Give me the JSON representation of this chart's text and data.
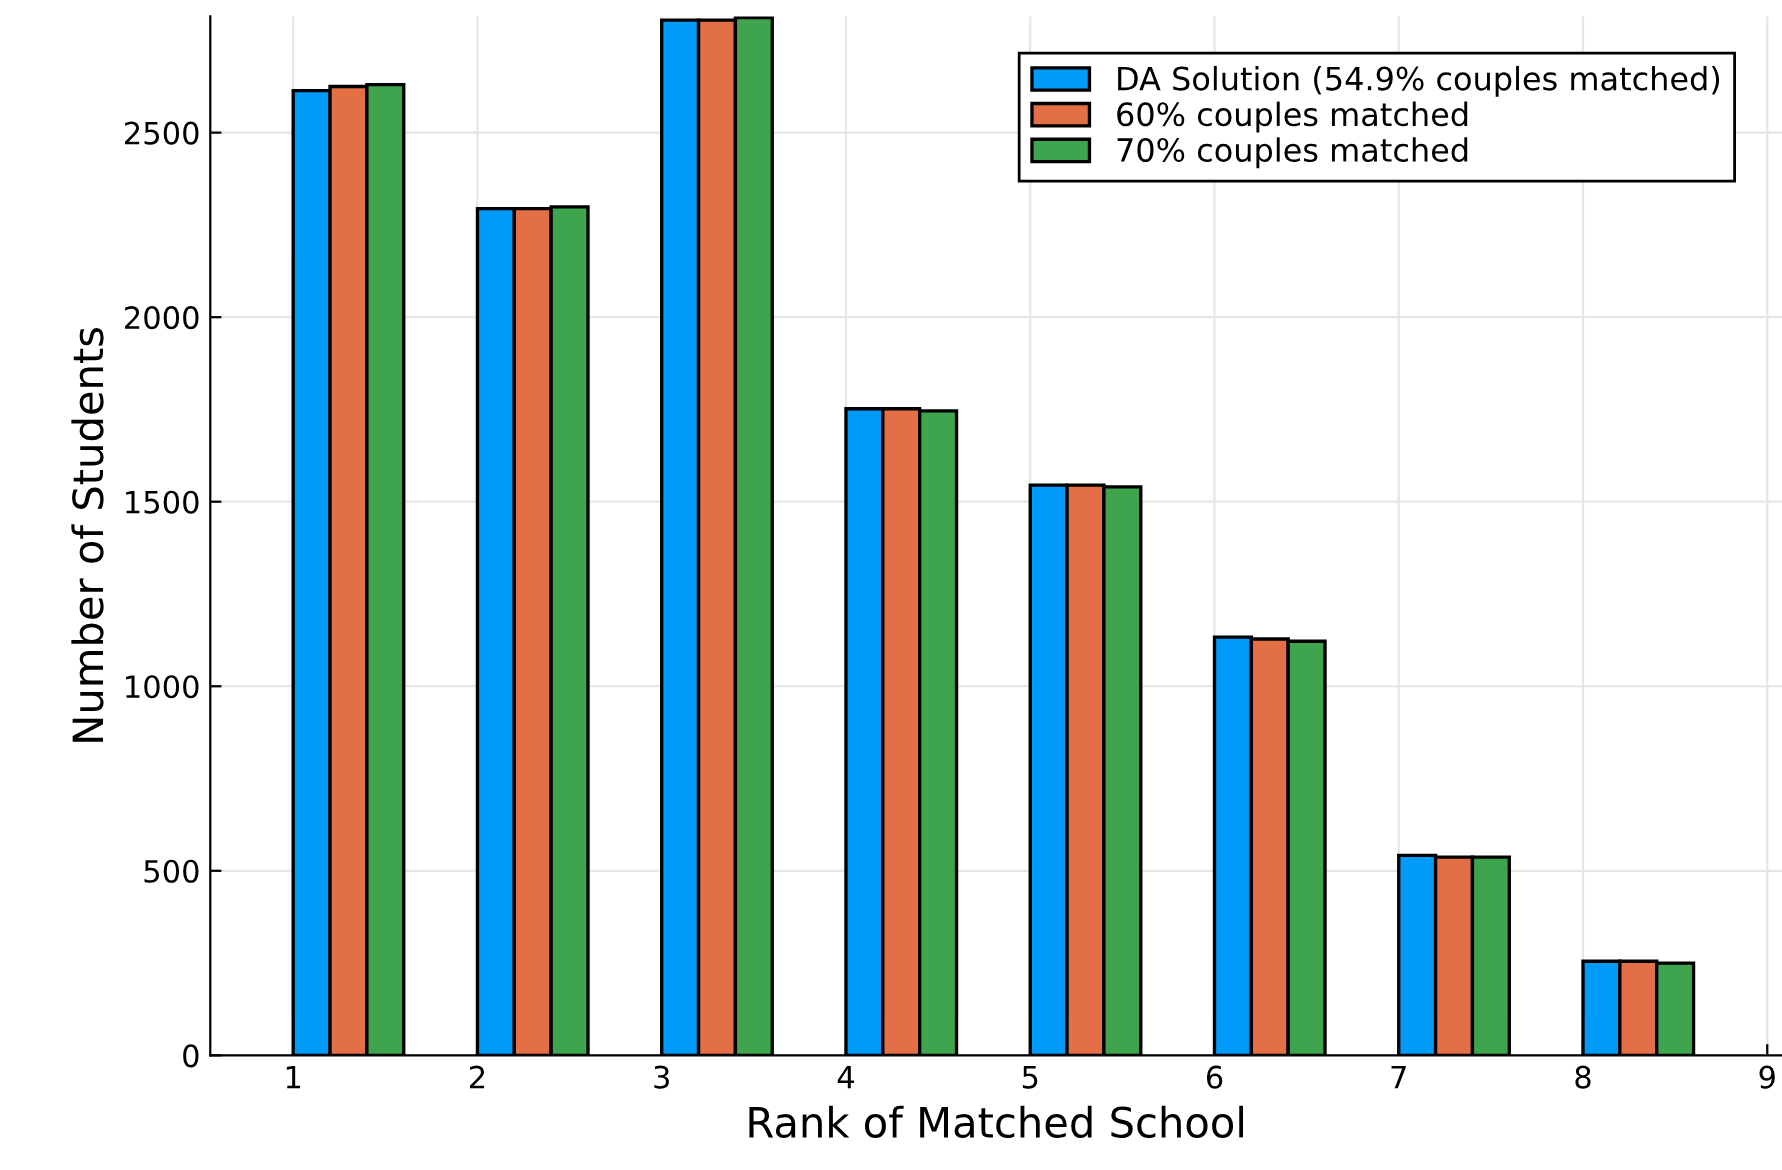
{
  "chart_data": {
    "type": "bar",
    "xlabel": "Rank of Matched School",
    "ylabel": "Number of Students",
    "series": [
      {
        "name": "DA Solution (54.9% couples matched)",
        "color": "#009af9",
        "x": [
          1.1,
          2.1,
          3.1,
          4.1,
          5.1,
          6.1,
          7.1,
          8.1
        ],
        "values": [
          2614,
          2294,
          2805,
          1752,
          1545,
          1133,
          542,
          255
        ]
      },
      {
        "name": "60% couples matched",
        "color": "#e26f46",
        "x": [
          1.3,
          2.3,
          3.3,
          4.3,
          5.3,
          6.3,
          7.3,
          8.3
        ],
        "values": [
          2625,
          2294,
          2805,
          1752,
          1545,
          1128,
          537,
          255
        ]
      },
      {
        "name": "70% couples matched",
        "color": "#3ea44e",
        "x": [
          1.5,
          2.5,
          3.5,
          4.5,
          5.5,
          6.5,
          7.5,
          8.5
        ],
        "values": [
          2630,
          2299,
          2812,
          1746,
          1540,
          1122,
          537,
          250
        ]
      }
    ],
    "xlim": [
      0.55,
      9.08
    ],
    "xticks": [
      1,
      2,
      3,
      4,
      5,
      6,
      7,
      8,
      9
    ],
    "ylim": [
      0,
      2815
    ],
    "yticks": [
      0,
      500,
      1000,
      1500,
      2000,
      2500
    ],
    "grid": true,
    "legend": "top right"
  }
}
